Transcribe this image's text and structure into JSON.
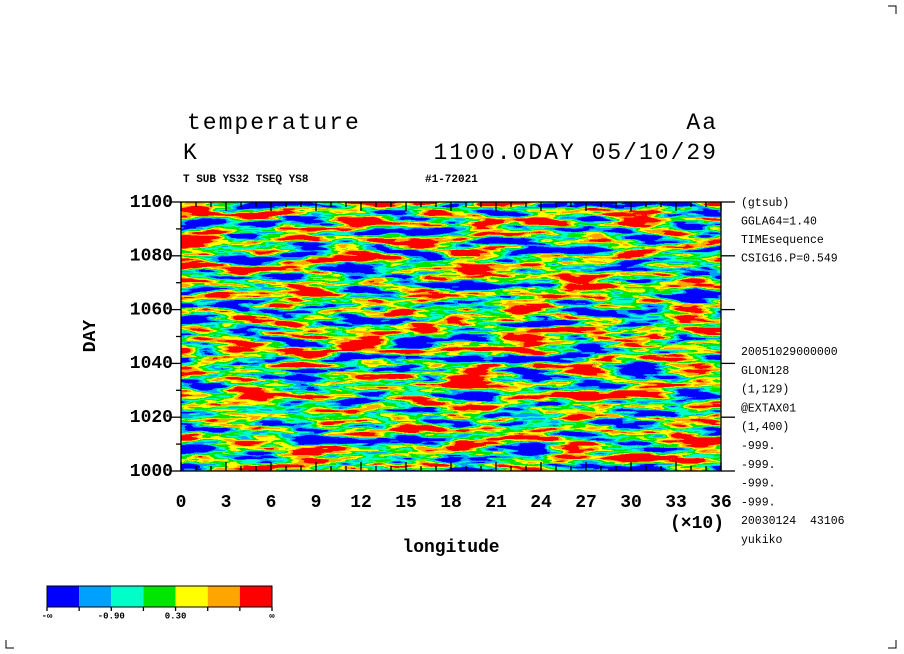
{
  "chart_data": {
    "type": "heatmap",
    "title": "temperature",
    "title_right": "Aa",
    "unit": "K",
    "time_label": "1100.0DAY 05/10/29",
    "subtitle": "T SUB YS32 TSEQ YS8",
    "subtitle_right": "#1-72021",
    "xlabel": "longitude",
    "ylabel": "DAY",
    "x_multiplier": "(×10)",
    "xlim": [
      0,
      36
    ],
    "xticks": [
      0,
      3,
      6,
      9,
      12,
      15,
      18,
      21,
      24,
      27,
      30,
      33,
      36
    ],
    "ylim": [
      1000,
      1100
    ],
    "yticks": [
      1000,
      1020,
      1040,
      1060,
      1080,
      1100
    ],
    "notes_top": [
      "(gtsub)",
      "GGLA64=1.40",
      "TIMEsequence",
      "CSIG16.P=0.549"
    ],
    "notes_bottom": [
      "20051029000000",
      "GLON128",
      "(1,129)",
      "@EXTAX01",
      "(1,400)",
      "-999.",
      "-999.",
      "-999.",
      "-999.",
      "20030124  43106",
      "yukiko"
    ],
    "colorbar": {
      "colors": [
        "#0000ff",
        "#00a0ff",
        "#00ffc8",
        "#00e600",
        "#ffff00",
        "#ffa500",
        "#ff0000"
      ],
      "labels": [
        "-∞",
        null,
        "-0.90",
        null,
        "0.30",
        null,
        null,
        "∞"
      ]
    }
  }
}
